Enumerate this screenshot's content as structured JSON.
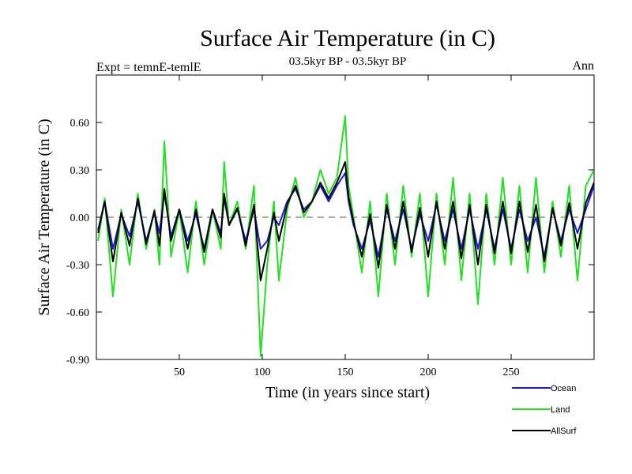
{
  "chart_data": {
    "type": "line",
    "title": "Surface Air Temperature (in C)",
    "subtitle": "03.5kyr BP - 03.5kyr BP",
    "left_label": "Expt = temnE-temlE",
    "right_label": "Ann",
    "xlabel": "Time (in years since start)",
    "ylabel": "Surface Air Temperature (in C)",
    "xlim": [
      0,
      300
    ],
    "ylim": [
      -0.9,
      0.9
    ],
    "x_ticks": [
      {
        "value": 50,
        "label": "50"
      },
      {
        "value": 100,
        "label": "100"
      },
      {
        "value": 150,
        "label": "150"
      },
      {
        "value": 200,
        "label": "200"
      },
      {
        "value": 250,
        "label": "250"
      }
    ],
    "y_ticks": [
      {
        "value": -0.9,
        "label": "-0.90"
      },
      {
        "value": -0.6,
        "label": "-0.60"
      },
      {
        "value": -0.3,
        "label": "-0.30"
      },
      {
        "value": 0.0,
        "label": "0.00"
      },
      {
        "value": 0.3,
        "label": "0.30"
      },
      {
        "value": 0.6,
        "label": "0.60"
      }
    ],
    "zero_line": true,
    "legend": "below-right",
    "x": [
      1,
      5,
      10,
      15,
      20,
      25,
      30,
      35,
      38,
      41,
      45,
      50,
      55,
      60,
      65,
      70,
      75,
      77,
      80,
      85,
      90,
      95,
      99,
      103,
      107,
      110,
      115,
      120,
      125,
      130,
      135,
      140,
      145,
      150,
      152,
      155,
      160,
      165,
      170,
      175,
      180,
      185,
      190,
      195,
      200,
      205,
      210,
      215,
      220,
      225,
      230,
      235,
      240,
      245,
      250,
      255,
      260,
      265,
      270,
      275,
      280,
      285,
      290,
      295,
      300
    ],
    "series": [
      {
        "name": "Land",
        "color": "#22e022",
        "values": [
          -0.15,
          0.12,
          -0.5,
          0.05,
          -0.3,
          0.15,
          -0.2,
          0.05,
          -0.3,
          0.48,
          -0.25,
          0.05,
          -0.35,
          0.1,
          -0.3,
          0.05,
          -0.2,
          0.35,
          -0.05,
          0.1,
          -0.2,
          0.2,
          -0.88,
          -0.3,
          0.1,
          -0.4,
          0.05,
          0.25,
          0.0,
          0.1,
          0.3,
          0.15,
          0.25,
          0.64,
          0.2,
          0.0,
          -0.35,
          0.1,
          -0.5,
          0.15,
          -0.3,
          0.2,
          -0.25,
          0.15,
          -0.5,
          0.15,
          -0.3,
          0.25,
          -0.4,
          0.15,
          -0.55,
          0.15,
          -0.3,
          0.25,
          -0.3,
          0.2,
          -0.35,
          0.25,
          -0.35,
          0.1,
          -0.25,
          0.2,
          -0.4,
          0.2,
          0.3
        ]
      },
      {
        "name": "Ocean",
        "color": "#1a1ae0",
        "values": [
          -0.08,
          0.1,
          -0.2,
          0.02,
          -0.12,
          0.1,
          -0.15,
          0.03,
          -0.1,
          0.15,
          -0.12,
          0.05,
          -0.15,
          0.02,
          -0.2,
          0.05,
          -0.1,
          0.12,
          -0.05,
          0.05,
          -0.15,
          0.05,
          -0.2,
          -0.15,
          0.0,
          -0.05,
          0.1,
          0.18,
          0.05,
          0.1,
          0.2,
          0.1,
          0.2,
          0.28,
          0.1,
          -0.05,
          -0.2,
          -0.02,
          -0.25,
          0.05,
          -0.15,
          0.05,
          -0.2,
          0.02,
          -0.15,
          0.08,
          -0.15,
          0.05,
          -0.2,
          0.05,
          -0.2,
          0.05,
          -0.2,
          0.05,
          -0.2,
          0.05,
          -0.15,
          0.0,
          -0.25,
          0.05,
          -0.15,
          0.05,
          -0.1,
          0.05,
          0.2
        ]
      },
      {
        "name": "AllSurf",
        "color": "#000000",
        "values": [
          -0.1,
          0.1,
          -0.28,
          0.03,
          -0.18,
          0.12,
          -0.17,
          0.04,
          -0.18,
          0.18,
          -0.15,
          0.05,
          -0.2,
          0.05,
          -0.22,
          0.05,
          -0.13,
          0.15,
          -0.05,
          0.06,
          -0.18,
          0.08,
          -0.4,
          -0.2,
          0.03,
          -0.15,
          0.08,
          0.2,
          0.03,
          0.1,
          0.22,
          0.12,
          0.22,
          0.35,
          0.13,
          -0.03,
          -0.25,
          0.02,
          -0.32,
          0.08,
          -0.2,
          0.1,
          -0.22,
          0.06,
          -0.25,
          0.1,
          -0.2,
          0.1,
          -0.26,
          0.08,
          -0.3,
          0.08,
          -0.23,
          0.1,
          -0.23,
          0.1,
          -0.22,
          0.08,
          -0.28,
          0.06,
          -0.18,
          0.09,
          -0.2,
          0.09,
          0.22
        ]
      }
    ]
  }
}
